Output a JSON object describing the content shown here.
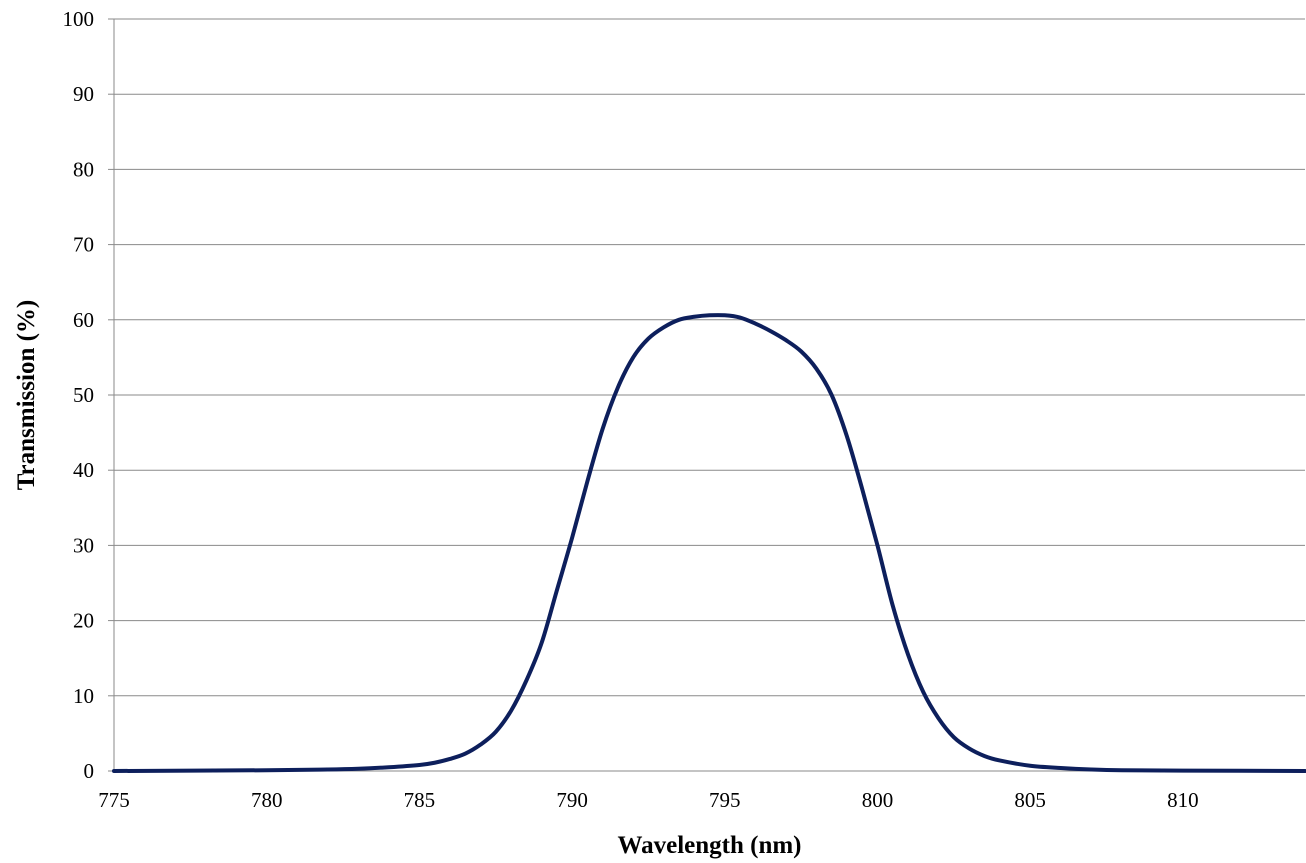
{
  "chart_data": {
    "type": "line",
    "title": "",
    "xlabel": "Wavelength (nm)",
    "ylabel": "Transmission (%)",
    "xlim": [
      775,
      814
    ],
    "ylim": [
      0,
      100
    ],
    "x_ticks": [
      775,
      780,
      785,
      790,
      795,
      800,
      805,
      810
    ],
    "y_ticks": [
      0,
      10,
      20,
      30,
      40,
      50,
      60,
      70,
      80,
      90,
      100
    ],
    "grid": "horizontal",
    "legend": "none",
    "series": [
      {
        "color": "#0d1f5c",
        "x": [
          775,
          780,
          782,
          783,
          784,
          785,
          785.5,
          786,
          786.5,
          787,
          787.5,
          788,
          788.5,
          789,
          789.5,
          790,
          790.5,
          791,
          791.5,
          792,
          792.5,
          793,
          793.5,
          794,
          794.5,
          795,
          795.5,
          796,
          796.5,
          797,
          797.5,
          798,
          798.5,
          799,
          799.5,
          800,
          800.5,
          801,
          801.5,
          802,
          802.5,
          803,
          803.5,
          804,
          805,
          806,
          807,
          808,
          810,
          814
        ],
        "y": [
          0.0,
          0.1,
          0.2,
          0.3,
          0.5,
          0.8,
          1.1,
          1.6,
          2.3,
          3.5,
          5.2,
          8.0,
          12.0,
          17.0,
          24.0,
          31.0,
          38.5,
          45.5,
          51.0,
          55.0,
          57.5,
          59.0,
          60.0,
          60.4,
          60.6,
          60.6,
          60.3,
          59.5,
          58.5,
          57.3,
          55.8,
          53.5,
          50.0,
          44.5,
          37.5,
          30.0,
          22.0,
          15.5,
          10.5,
          7.0,
          4.5,
          3.0,
          2.0,
          1.4,
          0.7,
          0.4,
          0.2,
          0.1,
          0.05,
          0.0
        ]
      }
    ]
  }
}
